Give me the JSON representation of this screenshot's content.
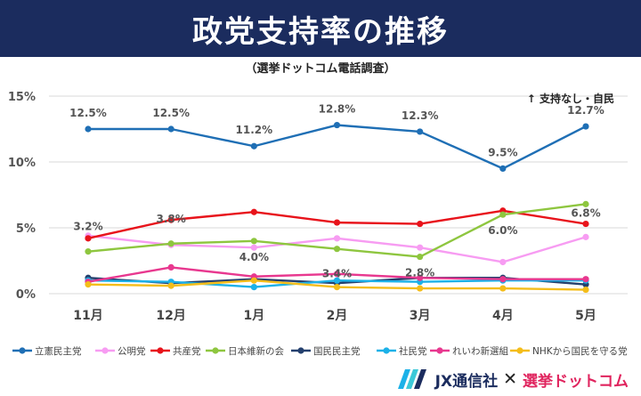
{
  "title": "政党支持率の推移",
  "subtitle": "（選挙ドットコム電話調査）",
  "note": "↑ 支持なし・自民",
  "brand": {
    "company": "JX通信社",
    "cross": "✕",
    "site": "選挙ドットコム"
  },
  "chart_data": {
    "type": "line",
    "categories": [
      "11月",
      "12月",
      "1月",
      "2月",
      "3月",
      "4月",
      "5月"
    ],
    "ylim": [
      0,
      15
    ],
    "yticks": [
      0,
      5,
      10,
      15
    ],
    "ytick_labels": [
      "0%",
      "5%",
      "10%",
      "15%"
    ],
    "grid": true,
    "legend": "bottom",
    "series": [
      {
        "name": "立憲民主党",
        "color": "#1f6fb5",
        "values": [
          12.5,
          12.5,
          11.2,
          12.8,
          12.3,
          9.5,
          12.7
        ]
      },
      {
        "name": "公明党",
        "color": "#f79cf2",
        "values": [
          4.4,
          3.7,
          3.5,
          4.2,
          3.5,
          2.4,
          4.3
        ]
      },
      {
        "name": "共産党",
        "color": "#e8131b",
        "values": [
          4.2,
          5.6,
          6.2,
          5.4,
          5.3,
          6.3,
          5.3
        ]
      },
      {
        "name": "日本維新の会",
        "color": "#8ec63f",
        "values": [
          3.2,
          3.8,
          4.0,
          3.4,
          2.8,
          6.0,
          6.8
        ]
      },
      {
        "name": "国民民主党",
        "color": "#24406e",
        "values": [
          1.2,
          0.8,
          1.1,
          0.8,
          1.2,
          1.2,
          0.7
        ]
      },
      {
        "name": "社民党",
        "color": "#1cb1e8",
        "values": [
          1.0,
          0.9,
          0.5,
          1.0,
          0.9,
          1.0,
          1.0
        ]
      },
      {
        "name": "れいわ新選組",
        "color": "#e8388f",
        "values": [
          0.9,
          2.0,
          1.3,
          1.5,
          1.2,
          1.1,
          1.1
        ]
      },
      {
        "name": "NHKから国民を守る党",
        "color": "#f4bd1a",
        "values": [
          0.7,
          0.6,
          1.0,
          0.5,
          0.4,
          0.4,
          0.3
        ]
      }
    ],
    "data_labels": [
      {
        "series": 0,
        "index": 0,
        "text": "12.5%"
      },
      {
        "series": 0,
        "index": 1,
        "text": "12.5%"
      },
      {
        "series": 0,
        "index": 2,
        "text": "11.2%"
      },
      {
        "series": 0,
        "index": 3,
        "text": "12.8%"
      },
      {
        "series": 0,
        "index": 4,
        "text": "12.3%"
      },
      {
        "series": 0,
        "index": 5,
        "text": "9.5%"
      },
      {
        "series": 0,
        "index": 6,
        "text": "12.7%"
      },
      {
        "series": 3,
        "index": 0,
        "text": "3.2%"
      },
      {
        "series": 3,
        "index": 1,
        "text": "3.8%"
      },
      {
        "series": 3,
        "index": 2,
        "text": "4.0%"
      },
      {
        "series": 3,
        "index": 3,
        "text": "3.4%"
      },
      {
        "series": 3,
        "index": 4,
        "text": "2.8%"
      },
      {
        "series": 3,
        "index": 5,
        "text": "6.0%"
      },
      {
        "series": 3,
        "index": 6,
        "text": "6.8%"
      }
    ]
  }
}
